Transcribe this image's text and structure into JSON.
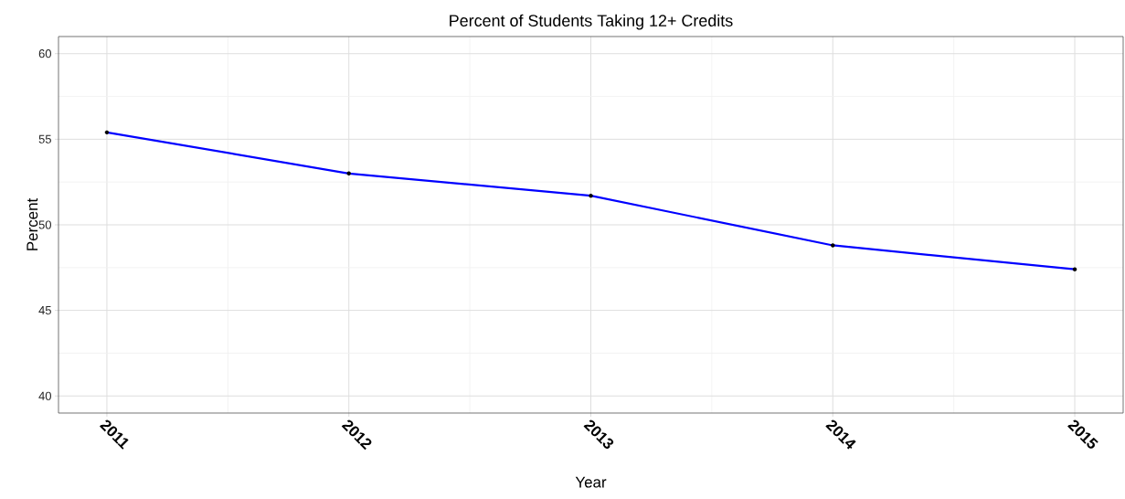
{
  "chart_data": {
    "type": "line",
    "title": "Percent of Students Taking 12+ Credits",
    "xlabel": "Year",
    "ylabel": "Percent",
    "x": [
      2011,
      2012,
      2013,
      2014,
      2015
    ],
    "series": [
      {
        "color": "#0000ff",
        "values": [
          55.4,
          53.0,
          51.7,
          48.8,
          47.4
        ]
      }
    ],
    "xlim": [
      2010.8,
      2015.2
    ],
    "ylim": [
      39,
      61
    ],
    "xticks": [
      2011,
      2012,
      2013,
      2014,
      2015
    ],
    "yticks": [
      40,
      45,
      50,
      55,
      60
    ],
    "grid": true,
    "marker": "circle"
  }
}
